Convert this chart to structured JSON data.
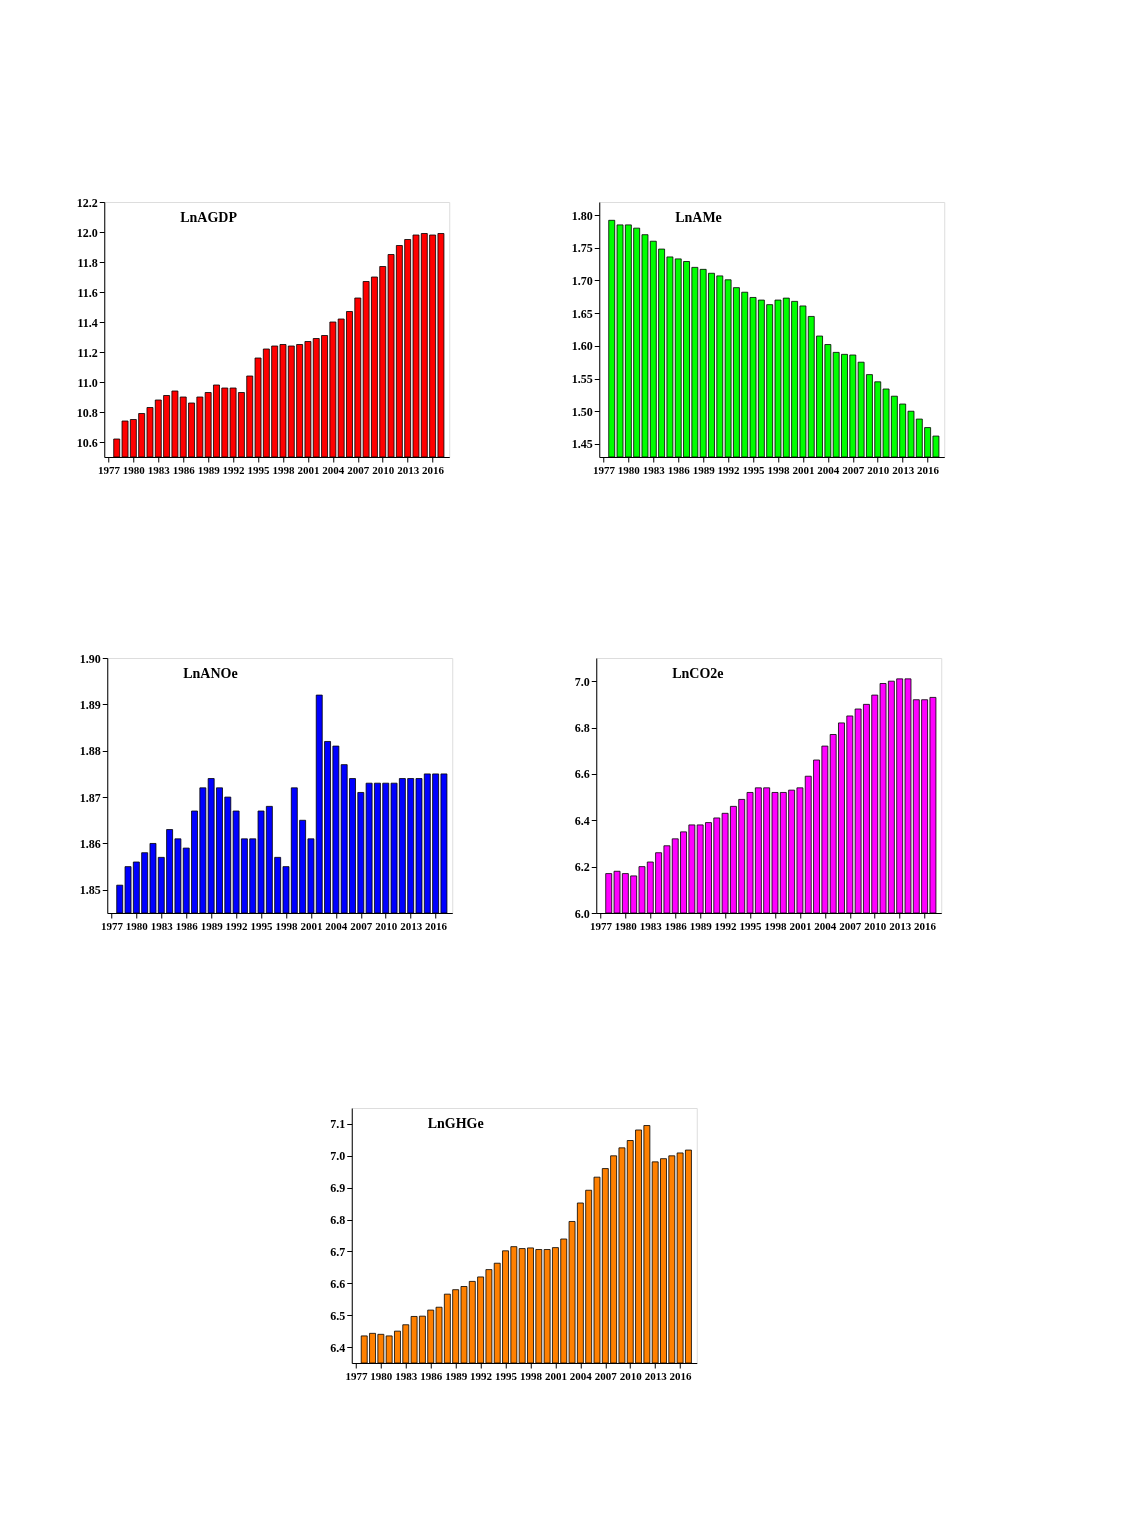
{
  "chart_data": [
    {
      "type": "bar",
      "title": "LnAGDP",
      "color": "#ff0000",
      "grid": false,
      "xlim": [
        1976.5,
        2018
      ],
      "xticks": [
        1977,
        1980,
        1983,
        1986,
        1989,
        1992,
        1995,
        1998,
        2001,
        2004,
        2007,
        2010,
        2013,
        2016
      ],
      "ylim": [
        10.5,
        12.2
      ],
      "yticks": [
        10.6,
        10.8,
        {
          "value": 11,
          "label": "11.0"
        },
        11.2,
        11.4,
        11.6,
        11.8,
        {
          "value": 12,
          "label": "12.0"
        },
        12.2
      ],
      "x": [
        1978,
        1979,
        1980,
        1981,
        1982,
        1983,
        1984,
        1985,
        1986,
        1987,
        1988,
        1989,
        1990,
        1991,
        1992,
        1993,
        1994,
        1995,
        1996,
        1997,
        1998,
        1999,
        2000,
        2001,
        2002,
        2003,
        2004,
        2005,
        2006,
        2007,
        2008,
        2009,
        2010,
        2011,
        2012,
        2013,
        2014,
        2015,
        2016,
        2017
      ],
      "values": [
        10.62,
        10.74,
        10.75,
        10.79,
        10.83,
        10.88,
        10.91,
        10.94,
        10.9,
        10.86,
        10.9,
        10.93,
        10.98,
        10.96,
        10.96,
        10.93,
        11.04,
        11.16,
        11.22,
        11.24,
        11.25,
        11.24,
        11.25,
        11.27,
        11.29,
        11.31,
        11.4,
        11.42,
        11.47,
        11.56,
        11.67,
        11.7,
        11.77,
        11.85,
        11.91,
        11.95,
        11.98,
        11.99,
        11.98,
        11.99
      ]
    },
    {
      "type": "bar",
      "title": "LnAMe",
      "color": "#00ff00",
      "grid": false,
      "xlim": [
        1976.5,
        2018
      ],
      "xticks": [
        1977,
        1980,
        1983,
        1986,
        1989,
        1992,
        1995,
        1998,
        2001,
        2004,
        2007,
        2010,
        2013,
        2016
      ],
      "ylim": [
        1.43,
        1.82
      ],
      "yticks": [
        1.45,
        {
          "value": 1.5,
          "label": "1.50"
        },
        1.55,
        {
          "value": 1.6,
          "label": "1.60"
        },
        1.65,
        {
          "value": 1.7,
          "label": "1.70"
        },
        1.75,
        {
          "value": 1.8,
          "label": "1.80"
        }
      ],
      "x": [
        1978,
        1979,
        1980,
        1981,
        1982,
        1983,
        1984,
        1985,
        1986,
        1987,
        1988,
        1989,
        1990,
        1991,
        1992,
        1993,
        1994,
        1995,
        1996,
        1997,
        1998,
        1999,
        2000,
        2001,
        2002,
        2003,
        2004,
        2005,
        2006,
        2007,
        2008,
        2009,
        2010,
        2011,
        2012,
        2013,
        2014,
        2015,
        2016,
        2017
      ],
      "values": [
        1.792,
        1.785,
        1.785,
        1.78,
        1.77,
        1.76,
        1.748,
        1.736,
        1.733,
        1.729,
        1.72,
        1.717,
        1.711,
        1.707,
        1.701,
        1.689,
        1.682,
        1.674,
        1.67,
        1.663,
        1.67,
        1.673,
        1.668,
        1.661,
        1.645,
        1.615,
        1.602,
        1.59,
        1.587,
        1.586,
        1.575,
        1.556,
        1.545,
        1.534,
        1.523,
        1.511,
        1.5,
        1.488,
        1.475,
        1.462
      ]
    },
    {
      "type": "bar",
      "title": "LnANOe",
      "color": "#0000ff",
      "grid": false,
      "xlim": [
        1976.5,
        2018
      ],
      "xticks": [
        1977,
        1980,
        1983,
        1986,
        1989,
        1992,
        1995,
        1998,
        2001,
        2004,
        2007,
        2010,
        2013,
        2016
      ],
      "ylim": [
        1.845,
        1.9
      ],
      "yticks": [
        1.85,
        1.86,
        1.87,
        1.88,
        1.89,
        {
          "value": 1.9,
          "label": "1.90"
        }
      ],
      "x": [
        1978,
        1979,
        1980,
        1981,
        1982,
        1983,
        1984,
        1985,
        1986,
        1987,
        1988,
        1989,
        1990,
        1991,
        1992,
        1993,
        1994,
        1995,
        1996,
        1997,
        1998,
        1999,
        2000,
        2001,
        2002,
        2003,
        2004,
        2005,
        2006,
        2007,
        2008,
        2009,
        2010,
        2011,
        2012,
        2013,
        2014,
        2015,
        2016,
        2017
      ],
      "values": [
        1.851,
        1.855,
        1.856,
        1.858,
        1.86,
        1.857,
        1.863,
        1.861,
        1.859,
        1.867,
        1.872,
        1.874,
        1.872,
        1.87,
        1.867,
        1.861,
        1.861,
        1.867,
        1.868,
        1.857,
        1.855,
        1.872,
        1.865,
        1.861,
        1.892,
        1.882,
        1.881,
        1.877,
        1.874,
        1.871,
        1.873,
        1.873,
        1.873,
        1.873,
        1.874,
        1.874,
        1.874,
        1.875,
        1.875,
        1.875
      ]
    },
    {
      "type": "bar",
      "title": "LnCO2e",
      "color": "#ff00ff",
      "grid": false,
      "xlim": [
        1976.5,
        2018
      ],
      "xticks": [
        1977,
        1980,
        1983,
        1986,
        1989,
        1992,
        1995,
        1998,
        2001,
        2004,
        2007,
        2010,
        2013,
        2016
      ],
      "ylim": [
        6.0,
        7.1
      ],
      "yticks": [
        {
          "value": 6,
          "label": "6.0"
        },
        6.2,
        6.4,
        6.6,
        6.8,
        {
          "value": 7,
          "label": "7.0"
        }
      ],
      "x": [
        1978,
        1979,
        1980,
        1981,
        1982,
        1983,
        1984,
        1985,
        1986,
        1987,
        1988,
        1989,
        1990,
        1991,
        1992,
        1993,
        1994,
        1995,
        1996,
        1997,
        1998,
        1999,
        2000,
        2001,
        2002,
        2003,
        2004,
        2005,
        2006,
        2007,
        2008,
        2009,
        2010,
        2011,
        2012,
        2013,
        2014,
        2015,
        2016,
        2017
      ],
      "values": [
        6.17,
        6.18,
        6.17,
        6.16,
        6.2,
        6.22,
        6.26,
        6.29,
        6.32,
        6.35,
        6.38,
        6.38,
        6.39,
        6.41,
        6.43,
        6.46,
        6.49,
        6.52,
        6.54,
        6.54,
        6.52,
        6.52,
        6.53,
        6.54,
        6.59,
        6.66,
        6.72,
        6.77,
        6.82,
        6.85,
        6.88,
        6.9,
        6.94,
        6.99,
        7.0,
        7.01,
        7.01,
        6.92,
        6.92,
        6.93
      ]
    },
    {
      "type": "bar",
      "title": "LnGHGe",
      "color": "#ff8000",
      "grid": false,
      "xlim": [
        1976.5,
        2018
      ],
      "xticks": [
        1977,
        1980,
        1983,
        1986,
        1989,
        1992,
        1995,
        1998,
        2001,
        2004,
        2007,
        2010,
        2013,
        2016
      ],
      "ylim": [
        6.35,
        7.15
      ],
      "yticks": [
        6.4,
        6.5,
        6.6,
        6.7,
        6.8,
        6.9,
        {
          "value": 7,
          "label": "7.0"
        },
        7.1
      ],
      "x": [
        1978,
        1979,
        1980,
        1981,
        1982,
        1983,
        1984,
        1985,
        1986,
        1987,
        1988,
        1989,
        1990,
        1991,
        1992,
        1993,
        1994,
        1995,
        1996,
        1997,
        1998,
        1999,
        2000,
        2001,
        2002,
        2003,
        2004,
        2005,
        2006,
        2007,
        2008,
        2009,
        2010,
        2011,
        2012,
        2013,
        2014,
        2015,
        2016,
        2017
      ],
      "values": [
        6.435,
        6.443,
        6.44,
        6.435,
        6.45,
        6.47,
        6.496,
        6.497,
        6.516,
        6.525,
        6.566,
        6.58,
        6.59,
        6.606,
        6.62,
        6.643,
        6.663,
        6.702,
        6.715,
        6.709,
        6.711,
        6.706,
        6.706,
        6.712,
        6.739,
        6.794,
        6.852,
        6.892,
        6.933,
        6.96,
        7.0,
        7.025,
        7.048,
        7.081,
        7.095,
        6.981,
        6.991,
        7.0,
        7.009,
        7.018
      ]
    }
  ]
}
